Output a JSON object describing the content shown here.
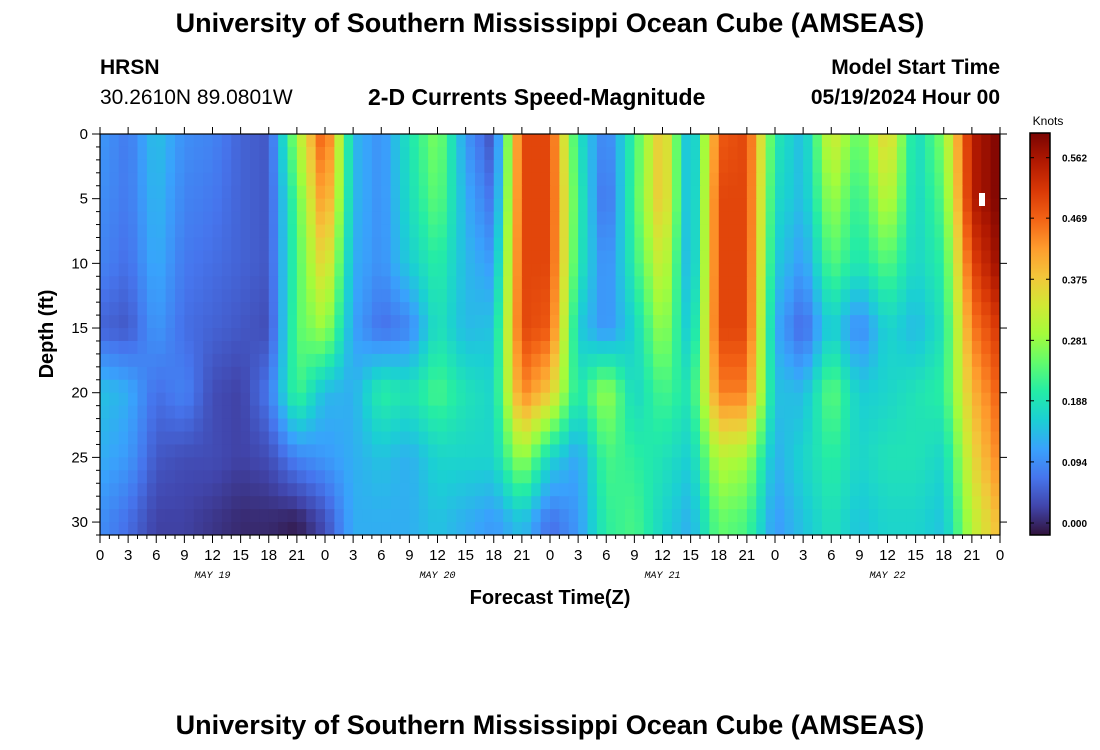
{
  "page": {
    "title_top": "University of Southern Mississippi Ocean Cube (AMSEAS)",
    "title_bottom": "University of Southern Mississippi Ocean Cube (AMSEAS)",
    "station": "HRSN",
    "coords": "30.2610N  89.0801W",
    "model_start_label": "Model Start Time",
    "model_start_value": "05/19/2024 Hour 00"
  },
  "chart_data": {
    "type": "heatmap",
    "title": "2-D Currents Speed-Magnitude",
    "xlabel": "Forecast Time(Z)",
    "ylabel": "Depth (ft)",
    "colorbar_label": "Knots",
    "colorbar_ticks": [
      "0.000",
      "0.094",
      "0.188",
      "0.281",
      "0.375",
      "0.469",
      "0.562"
    ],
    "colorbar_range": [
      0,
      0.6
    ],
    "colormap": [
      "#30123b",
      "#4145ab",
      "#4675ed",
      "#39a2fc",
      "#1bcfd4",
      "#24eca6",
      "#61fc6c",
      "#a4fc3b",
      "#d1e834",
      "#f3c63a",
      "#fe9b2d",
      "#f36315",
      "#d93806",
      "#b11901",
      "#7a0402"
    ],
    "ylim": [
      31,
      0
    ],
    "y_ticks": [
      "0",
      "5",
      "10",
      "15",
      "20",
      "25",
      "30"
    ],
    "xlim": [
      0,
      96
    ],
    "x_ticks": [
      "0",
      "3",
      "6",
      "9",
      "12",
      "15",
      "18",
      "21",
      "0",
      "3",
      "6",
      "9",
      "12",
      "15",
      "18",
      "21",
      "0",
      "3",
      "6",
      "9",
      "12",
      "15",
      "18",
      "21",
      "0",
      "3",
      "6",
      "9",
      "12",
      "15",
      "18",
      "21",
      "0"
    ],
    "day_labels": [
      "MAY 19",
      "MAY 20",
      "MAY 21",
      "MAY 22"
    ],
    "x_hours": [
      0,
      3,
      6,
      9,
      12,
      15,
      18,
      21,
      24,
      27,
      30,
      33,
      36,
      39,
      42,
      45,
      48,
      51,
      54,
      57,
      60,
      63,
      66,
      69,
      72,
      75,
      78,
      81,
      84,
      87,
      90,
      93,
      96
    ],
    "depths_ft": [
      0,
      5,
      10,
      15,
      20,
      25,
      30
    ],
    "values_knots": [
      [
        0.12,
        0.09,
        0.16,
        0.11,
        0.1,
        0.07,
        0.06,
        0.3,
        0.5,
        0.15,
        0.11,
        0.2,
        0.28,
        0.12,
        0.05,
        0.5,
        0.5,
        0.2,
        0.09,
        0.23,
        0.4,
        0.12,
        0.48,
        0.5,
        0.21,
        0.15,
        0.35,
        0.25,
        0.38,
        0.18,
        0.28,
        0.55,
        0.6
      ],
      [
        0.11,
        0.09,
        0.15,
        0.1,
        0.09,
        0.07,
        0.06,
        0.25,
        0.45,
        0.15,
        0.11,
        0.19,
        0.26,
        0.14,
        0.08,
        0.5,
        0.5,
        0.22,
        0.07,
        0.24,
        0.4,
        0.12,
        0.5,
        0.5,
        0.19,
        0.15,
        0.3,
        0.22,
        0.33,
        0.18,
        0.25,
        0.55,
        0.6
      ],
      [
        0.1,
        0.08,
        0.14,
        0.09,
        0.08,
        0.07,
        0.06,
        0.24,
        0.38,
        0.14,
        0.11,
        0.17,
        0.22,
        0.15,
        0.12,
        0.5,
        0.5,
        0.21,
        0.1,
        0.22,
        0.35,
        0.12,
        0.5,
        0.5,
        0.17,
        0.12,
        0.25,
        0.2,
        0.25,
        0.18,
        0.22,
        0.5,
        0.58
      ],
      [
        0.07,
        0.06,
        0.12,
        0.08,
        0.07,
        0.06,
        0.05,
        0.25,
        0.3,
        0.13,
        0.08,
        0.1,
        0.2,
        0.15,
        0.16,
        0.5,
        0.48,
        0.17,
        0.11,
        0.18,
        0.3,
        0.15,
        0.5,
        0.5,
        0.14,
        0.07,
        0.18,
        0.1,
        0.18,
        0.15,
        0.2,
        0.45,
        0.52
      ],
      [
        0.16,
        0.14,
        0.08,
        0.1,
        0.05,
        0.04,
        0.09,
        0.24,
        0.15,
        0.14,
        0.22,
        0.2,
        0.24,
        0.2,
        0.18,
        0.45,
        0.38,
        0.2,
        0.3,
        0.18,
        0.24,
        0.2,
        0.45,
        0.45,
        0.16,
        0.15,
        0.26,
        0.17,
        0.18,
        0.2,
        0.22,
        0.4,
        0.48
      ],
      [
        0.14,
        0.12,
        0.06,
        0.05,
        0.05,
        0.04,
        0.05,
        0.1,
        0.12,
        0.14,
        0.16,
        0.14,
        0.18,
        0.18,
        0.18,
        0.3,
        0.18,
        0.13,
        0.24,
        0.22,
        0.2,
        0.17,
        0.32,
        0.3,
        0.14,
        0.18,
        0.22,
        0.18,
        0.2,
        0.2,
        0.18,
        0.36,
        0.45
      ],
      [
        0.11,
        0.08,
        0.04,
        0.04,
        0.03,
        0.02,
        0.02,
        0.01,
        0.05,
        0.14,
        0.14,
        0.14,
        0.16,
        0.14,
        0.12,
        0.16,
        0.08,
        0.12,
        0.22,
        0.24,
        0.18,
        0.14,
        0.26,
        0.24,
        0.12,
        0.16,
        0.2,
        0.16,
        0.18,
        0.18,
        0.16,
        0.32,
        0.4
      ]
    ]
  }
}
